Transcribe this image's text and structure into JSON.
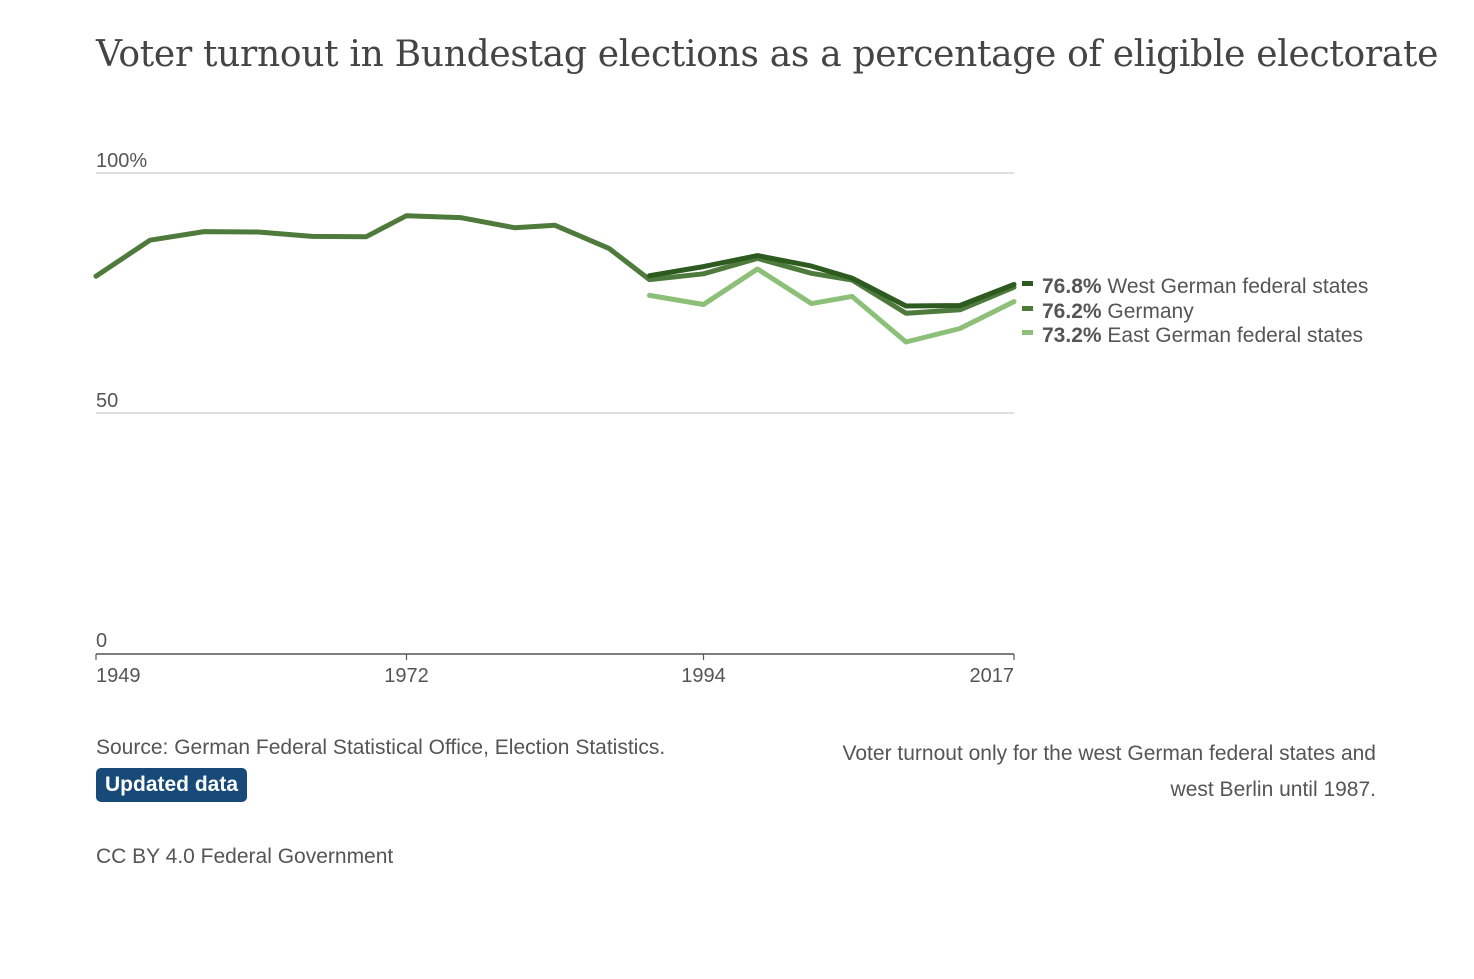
{
  "page": {
    "title": "Voter turnout in Bundestag elections as a percentage of eligible electorate",
    "source": "Source: German Federal Statistical Office, Election Statistics.",
    "badge": "Updated data",
    "note": "Voter turnout only for the west German federal states and west Berlin until 1987.",
    "license": "CC BY 4.0 Federal Government"
  },
  "colors": {
    "west": "#2c5a1f",
    "germany": "#4e7b3b",
    "east": "#8cbf78",
    "grid": "#cccccc",
    "axis": "#555555",
    "badge_bg": "#174a78"
  },
  "chart_data": {
    "type": "line",
    "title": "Voter turnout in Bundestag elections as a percentage of eligible electorate",
    "xlabel": "",
    "ylabel": "",
    "xlim": [
      1949,
      2017
    ],
    "ylim": [
      0,
      100
    ],
    "y_ticks": [
      {
        "value": 100,
        "label": "100%"
      },
      {
        "value": 50,
        "label": "50"
      },
      {
        "value": 0,
        "label": "0"
      }
    ],
    "x_ticks": [
      {
        "value": 1949,
        "label": "1949"
      },
      {
        "value": 1972,
        "label": "1972"
      },
      {
        "value": 1994,
        "label": "1994"
      },
      {
        "value": 2017,
        "label": "2017"
      }
    ],
    "grid": true,
    "legend": "direct labels at line ends (right)",
    "series": [
      {
        "key": "west",
        "name": "West German federal states",
        "end_value": "76.8%",
        "x": [
          1990,
          1994,
          1998,
          2002,
          2005,
          2009,
          2013,
          2017
        ],
        "values": [
          78.6,
          80.5,
          82.8,
          80.6,
          78.1,
          72.3,
          72.4,
          76.8
        ]
      },
      {
        "key": "germany",
        "name": "Germany",
        "end_value": "76.2%",
        "x": [
          1949,
          1953,
          1957,
          1961,
          1965,
          1969,
          1972,
          1976,
          1980,
          1983,
          1987,
          1990,
          1994,
          1998,
          2002,
          2005,
          2009,
          2013,
          2017
        ],
        "values": [
          78.5,
          86.0,
          87.8,
          87.7,
          86.8,
          86.7,
          91.1,
          90.7,
          88.6,
          89.1,
          84.3,
          77.8,
          79.0,
          82.2,
          79.1,
          77.7,
          70.8,
          71.5,
          76.2
        ]
      },
      {
        "key": "east",
        "name": "East German federal states",
        "end_value": "73.2%",
        "x": [
          1990,
          1994,
          1998,
          2002,
          2005,
          2009,
          2013,
          2017
        ],
        "values": [
          74.5,
          72.6,
          80.0,
          72.8,
          74.3,
          64.8,
          67.6,
          73.2
        ]
      }
    ]
  }
}
